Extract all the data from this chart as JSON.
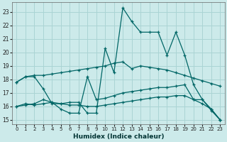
{
  "xlabel": "Humidex (Indice chaleur)",
  "bg_color": "#cceaea",
  "grid_color": "#aad4d4",
  "line_color": "#006666",
  "xlim": [
    -0.5,
    23.5
  ],
  "ylim": [
    14.7,
    23.7
  ],
  "xticks": [
    0,
    1,
    2,
    3,
    4,
    5,
    6,
    7,
    8,
    9,
    10,
    11,
    12,
    13,
    14,
    15,
    16,
    17,
    18,
    19,
    20,
    21,
    22,
    23
  ],
  "yticks": [
    15,
    16,
    17,
    18,
    19,
    20,
    21,
    22,
    23
  ],
  "series": [
    {
      "x": [
        0,
        1,
        2,
        3,
        4,
        5,
        6,
        7,
        8,
        9,
        10,
        11,
        12,
        13,
        14,
        15,
        16,
        17,
        18,
        19,
        20,
        21,
        22,
        23
      ],
      "y": [
        17.8,
        18.2,
        18.3,
        18.3,
        18.4,
        18.5,
        18.6,
        18.7,
        18.8,
        18.9,
        19.0,
        19.2,
        19.3,
        18.8,
        19.0,
        18.9,
        18.8,
        18.7,
        18.5,
        18.3,
        18.1,
        17.9,
        17.7,
        17.5
      ]
    },
    {
      "x": [
        0,
        1,
        2,
        3,
        4,
        5,
        6,
        7,
        8,
        9,
        10,
        11,
        12,
        13,
        14,
        15,
        16,
        17,
        18,
        19,
        20,
        21,
        22,
        23
      ],
      "y": [
        17.8,
        18.2,
        18.2,
        17.3,
        16.2,
        16.2,
        16.3,
        16.3,
        15.5,
        15.5,
        20.3,
        18.5,
        23.3,
        22.3,
        21.5,
        21.5,
        21.5,
        19.8,
        21.5,
        19.8,
        17.6,
        16.5,
        15.8,
        15.0
      ]
    },
    {
      "x": [
        0,
        1,
        2,
        3,
        4,
        5,
        6,
        7,
        8,
        9,
        10,
        11,
        12,
        13,
        14,
        15,
        16,
        17,
        18,
        19,
        20,
        21,
        22,
        23
      ],
      "y": [
        16.0,
        16.2,
        16.1,
        16.2,
        16.3,
        15.8,
        15.5,
        15.5,
        18.2,
        16.5,
        16.6,
        16.8,
        17.0,
        17.1,
        17.2,
        17.3,
        17.4,
        17.4,
        17.5,
        17.6,
        16.5,
        16.5,
        15.7,
        15.0
      ]
    },
    {
      "x": [
        0,
        1,
        2,
        3,
        4,
        5,
        6,
        7,
        8,
        9,
        10,
        11,
        12,
        13,
        14,
        15,
        16,
        17,
        18,
        19,
        20,
        21,
        22,
        23
      ],
      "y": [
        16.0,
        16.1,
        16.2,
        16.5,
        16.3,
        16.2,
        16.1,
        16.1,
        16.0,
        16.0,
        16.1,
        16.2,
        16.3,
        16.4,
        16.5,
        16.6,
        16.7,
        16.7,
        16.8,
        16.8,
        16.5,
        16.2,
        15.8,
        15.0
      ]
    }
  ]
}
